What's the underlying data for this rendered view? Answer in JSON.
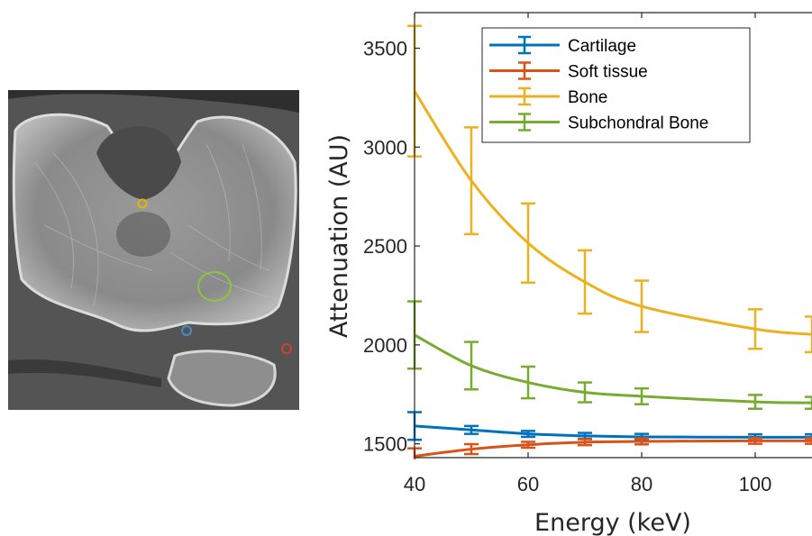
{
  "image_panel": {
    "roi_colors": {
      "cartilage": "#3f8fd0",
      "soft_tissue": "#d0402b",
      "bone": "#e6b400",
      "subchondral_bone": "#8cc63f"
    }
  },
  "chart_data": {
    "type": "line",
    "title": "",
    "xlabel": "Energy (keV)",
    "ylabel": "Attenuation (AU)",
    "xlim": [
      40,
      110
    ],
    "ylim": [
      1430,
      3680
    ],
    "x_ticks": [
      40,
      60,
      80,
      100
    ],
    "x_tick_labels": [
      "40",
      "60",
      "80",
      "100"
    ],
    "y_ticks": [
      1500,
      2000,
      2500,
      3000,
      3500
    ],
    "y_tick_labels": [
      "1500",
      "2000",
      "2500",
      "3000",
      "3500"
    ],
    "y_tick_labels_visible": [
      "1500",
      "2000",
      "2500",
      "3000",
      "3500"
    ],
    "grid": false,
    "legend_position": "top-right",
    "series": [
      {
        "name": "Cartilage",
        "color": "#0072bd",
        "x": [
          40,
          50,
          60,
          70,
          80,
          100,
          110
        ],
        "y": [
          1590,
          1570,
          1550,
          1540,
          1535,
          1533,
          1533
        ],
        "err": [
          70,
          20,
          15,
          15,
          15,
          15,
          15
        ]
      },
      {
        "name": "Soft tissue",
        "color": "#d95319",
        "x": [
          40,
          50,
          60,
          70,
          80,
          100,
          110
        ],
        "y": [
          1437,
          1473,
          1495,
          1508,
          1512,
          1515,
          1515
        ],
        "err": [
          40,
          25,
          15,
          15,
          15,
          15,
          15
        ]
      },
      {
        "name": "Bone",
        "color": "#edb120",
        "x": [
          40,
          50,
          60,
          70,
          80,
          100,
          110
        ],
        "y": [
          3283,
          2830,
          2515,
          2318,
          2195,
          2080,
          2053
        ],
        "err": [
          330,
          270,
          200,
          160,
          130,
          100,
          90
        ]
      },
      {
        "name": "Subchondral Bone",
        "color": "#77ac30",
        "x": [
          40,
          50,
          60,
          70,
          80,
          100,
          110
        ],
        "y": [
          2050,
          1895,
          1810,
          1760,
          1740,
          1712,
          1707
        ],
        "err": [
          170,
          120,
          80,
          50,
          40,
          35,
          30
        ]
      }
    ]
  }
}
